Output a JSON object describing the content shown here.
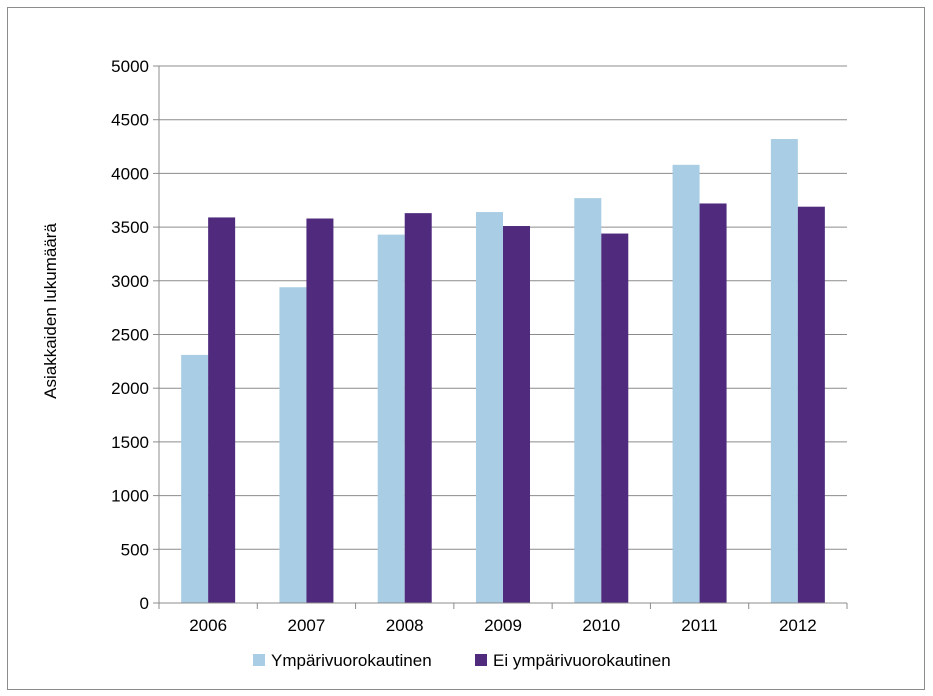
{
  "chart_data": {
    "type": "bar",
    "title": "",
    "xlabel": "",
    "ylabel": "Asiakkaiden lukumäärä",
    "categories": [
      "2006",
      "2007",
      "2008",
      "2009",
      "2010",
      "2011",
      "2012"
    ],
    "series": [
      {
        "name": "Ympärivuorokautinen",
        "color": "#a9cde4",
        "values": [
          2310,
          2940,
          3430,
          3640,
          3770,
          4080,
          4320
        ]
      },
      {
        "name": "Ei ympärivuorokautinen",
        "color": "#4f2a7d",
        "values": [
          3590,
          3580,
          3630,
          3510,
          3440,
          3720,
          3690
        ]
      }
    ],
    "ylim": [
      0,
      5000
    ],
    "yticks": [
      "0",
      "500",
      "1000",
      "1500",
      "2000",
      "2500",
      "3000",
      "3500",
      "4000",
      "4500",
      "5000"
    ],
    "grid": true,
    "gridline_color": "#8c8c8c",
    "legend_position": "bottom"
  }
}
